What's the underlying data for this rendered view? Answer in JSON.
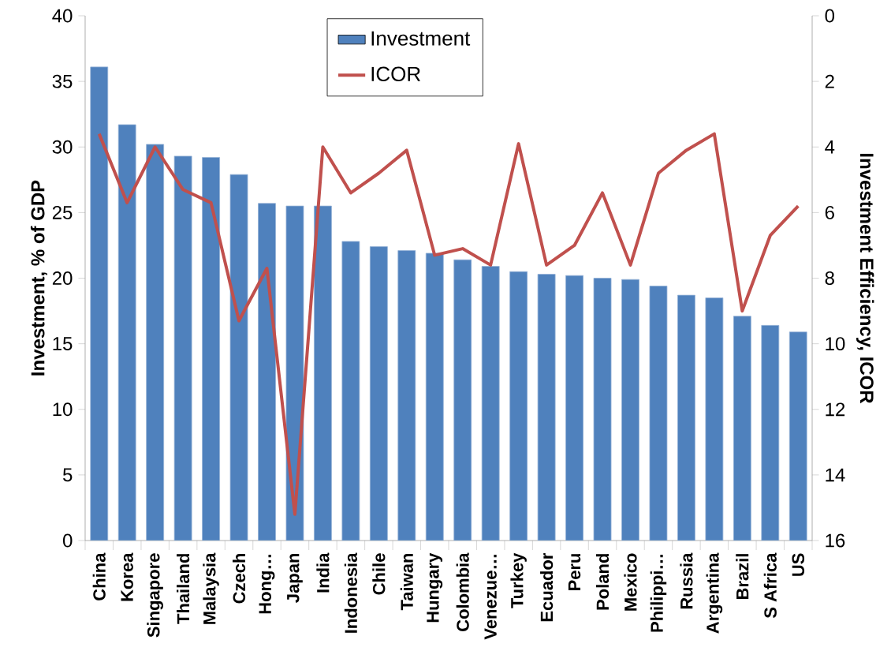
{
  "chart_data": {
    "type": "bar",
    "ylabel": "Investment, % of GDP",
    "y2label": "Investment Efficiency, ICOR",
    "categories": [
      "China",
      "Korea",
      "Singapore",
      "Thailand",
      "Malaysia",
      "Czech",
      "Hong…",
      "Japan",
      "India",
      "Indonesia",
      "Chile",
      "Taiwan",
      "Hungary",
      "Colombia",
      "Venezue…",
      "Turkey",
      "Ecuador",
      "Peru",
      "Poland",
      "Mexico",
      "Philippi…",
      "Russia",
      "Argentina",
      "Brazil",
      "S Africa",
      "US"
    ],
    "series": [
      {
        "name": "Investment",
        "color": "#4f81bd",
        "values": [
          36.1,
          31.7,
          30.2,
          29.3,
          29.2,
          27.9,
          25.7,
          25.5,
          25.5,
          22.8,
          22.4,
          22.1,
          21.9,
          21.4,
          20.9,
          20.5,
          20.3,
          20.2,
          20.0,
          19.9,
          19.4,
          18.7,
          18.5,
          17.1,
          16.4,
          15.9
        ]
      },
      {
        "name": "ICOR",
        "type": "line",
        "axis": "y2",
        "color": "#c0504d",
        "values": [
          3.6,
          5.7,
          4.0,
          5.3,
          5.7,
          9.3,
          7.7,
          15.2,
          4.0,
          5.4,
          4.8,
          4.1,
          7.3,
          7.1,
          7.6,
          3.9,
          7.6,
          7.0,
          5.4,
          7.6,
          4.8,
          4.1,
          3.6,
          9.0,
          6.7,
          5.8
        ]
      }
    ],
    "ylim": [
      0,
      40
    ],
    "yticks": [
      0,
      5,
      10,
      15,
      20,
      25,
      30,
      35,
      40
    ],
    "y2lim": [
      16,
      0
    ],
    "y2ticks": [
      0,
      2,
      4,
      6,
      8,
      10,
      12,
      14,
      16
    ],
    "legend": "top"
  }
}
